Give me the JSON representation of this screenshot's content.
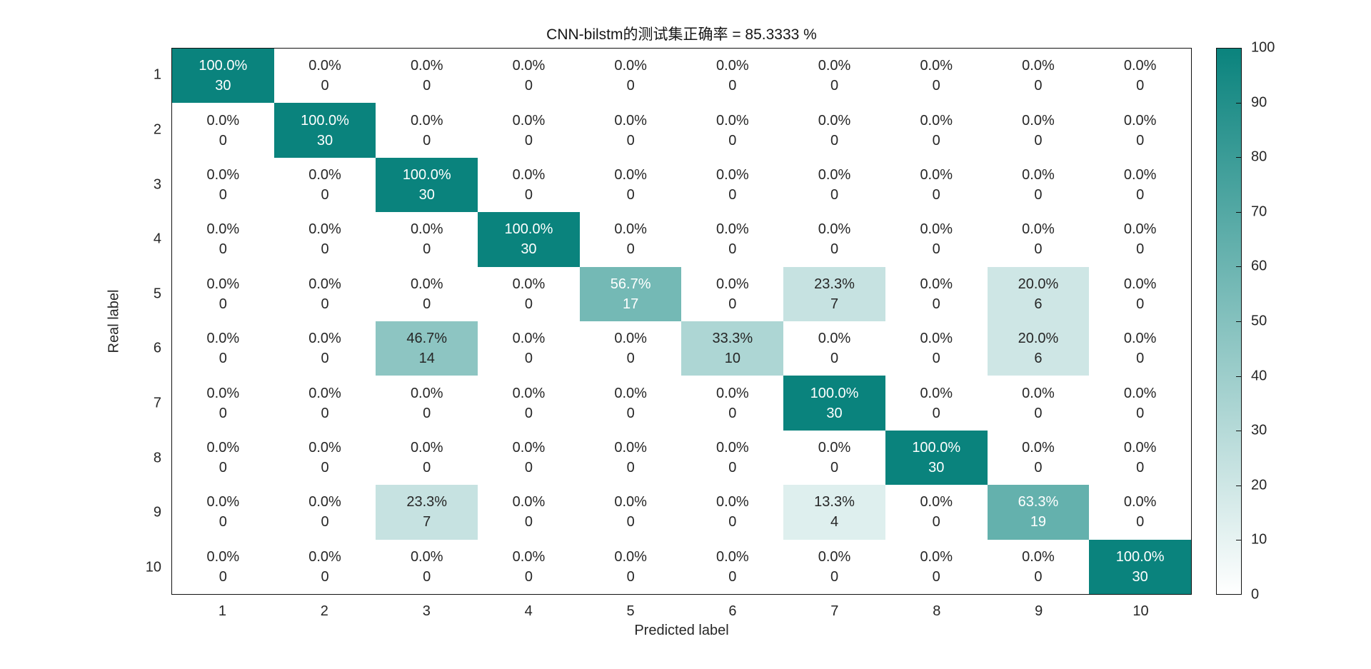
{
  "figure": {
    "background": "#ffffff"
  },
  "chart_data": {
    "type": "heatmap",
    "title": "CNN-bilstm的测试集正确率 = 85.3333 %",
    "xlabel": "Predicted label",
    "ylabel": "Real label",
    "x_tick_labels": [
      "1",
      "2",
      "3",
      "4",
      "5",
      "6",
      "7",
      "8",
      "9",
      "10"
    ],
    "y_tick_labels": [
      "1",
      "2",
      "3",
      "4",
      "5",
      "6",
      "7",
      "8",
      "9",
      "10"
    ],
    "percent_matrix": [
      [
        100.0,
        0.0,
        0.0,
        0.0,
        0.0,
        0.0,
        0.0,
        0.0,
        0.0,
        0.0
      ],
      [
        0.0,
        100.0,
        0.0,
        0.0,
        0.0,
        0.0,
        0.0,
        0.0,
        0.0,
        0.0
      ],
      [
        0.0,
        0.0,
        100.0,
        0.0,
        0.0,
        0.0,
        0.0,
        0.0,
        0.0,
        0.0
      ],
      [
        0.0,
        0.0,
        0.0,
        100.0,
        0.0,
        0.0,
        0.0,
        0.0,
        0.0,
        0.0
      ],
      [
        0.0,
        0.0,
        0.0,
        0.0,
        56.7,
        0.0,
        23.3,
        0.0,
        20.0,
        0.0
      ],
      [
        0.0,
        0.0,
        46.7,
        0.0,
        0.0,
        33.3,
        0.0,
        0.0,
        20.0,
        0.0
      ],
      [
        0.0,
        0.0,
        0.0,
        0.0,
        0.0,
        0.0,
        100.0,
        0.0,
        0.0,
        0.0
      ],
      [
        0.0,
        0.0,
        0.0,
        0.0,
        0.0,
        0.0,
        0.0,
        100.0,
        0.0,
        0.0
      ],
      [
        0.0,
        0.0,
        23.3,
        0.0,
        0.0,
        0.0,
        13.3,
        0.0,
        63.3,
        0.0
      ],
      [
        0.0,
        0.0,
        0.0,
        0.0,
        0.0,
        0.0,
        0.0,
        0.0,
        0.0,
        100.0
      ]
    ],
    "count_matrix": [
      [
        30,
        0,
        0,
        0,
        0,
        0,
        0,
        0,
        0,
        0
      ],
      [
        0,
        30,
        0,
        0,
        0,
        0,
        0,
        0,
        0,
        0
      ],
      [
        0,
        0,
        30,
        0,
        0,
        0,
        0,
        0,
        0,
        0
      ],
      [
        0,
        0,
        0,
        30,
        0,
        0,
        0,
        0,
        0,
        0
      ],
      [
        0,
        0,
        0,
        0,
        17,
        0,
        7,
        0,
        6,
        0
      ],
      [
        0,
        0,
        14,
        0,
        0,
        10,
        0,
        0,
        6,
        0
      ],
      [
        0,
        0,
        0,
        0,
        0,
        0,
        30,
        0,
        0,
        0
      ],
      [
        0,
        0,
        0,
        0,
        0,
        0,
        0,
        30,
        0,
        0
      ],
      [
        0,
        0,
        7,
        0,
        0,
        0,
        4,
        0,
        19,
        0
      ],
      [
        0,
        0,
        0,
        0,
        0,
        0,
        0,
        0,
        0,
        30
      ]
    ],
    "colorbar": {
      "min": 0,
      "max": 100,
      "tick_labels": [
        "0",
        "10",
        "20",
        "30",
        "40",
        "50",
        "60",
        "70",
        "80",
        "90",
        "100"
      ],
      "color_high": "#0a837d",
      "color_low": "#ffffff",
      "position": "right"
    },
    "colors": {
      "cell_text_dark": "#262626",
      "cell_text_light": "#ffffff",
      "axis_text": "#262626",
      "plot_border": "#111111"
    },
    "grid": false,
    "xlim_labels": [
      "1",
      "10"
    ],
    "ylim_labels": [
      "1",
      "10"
    ]
  }
}
